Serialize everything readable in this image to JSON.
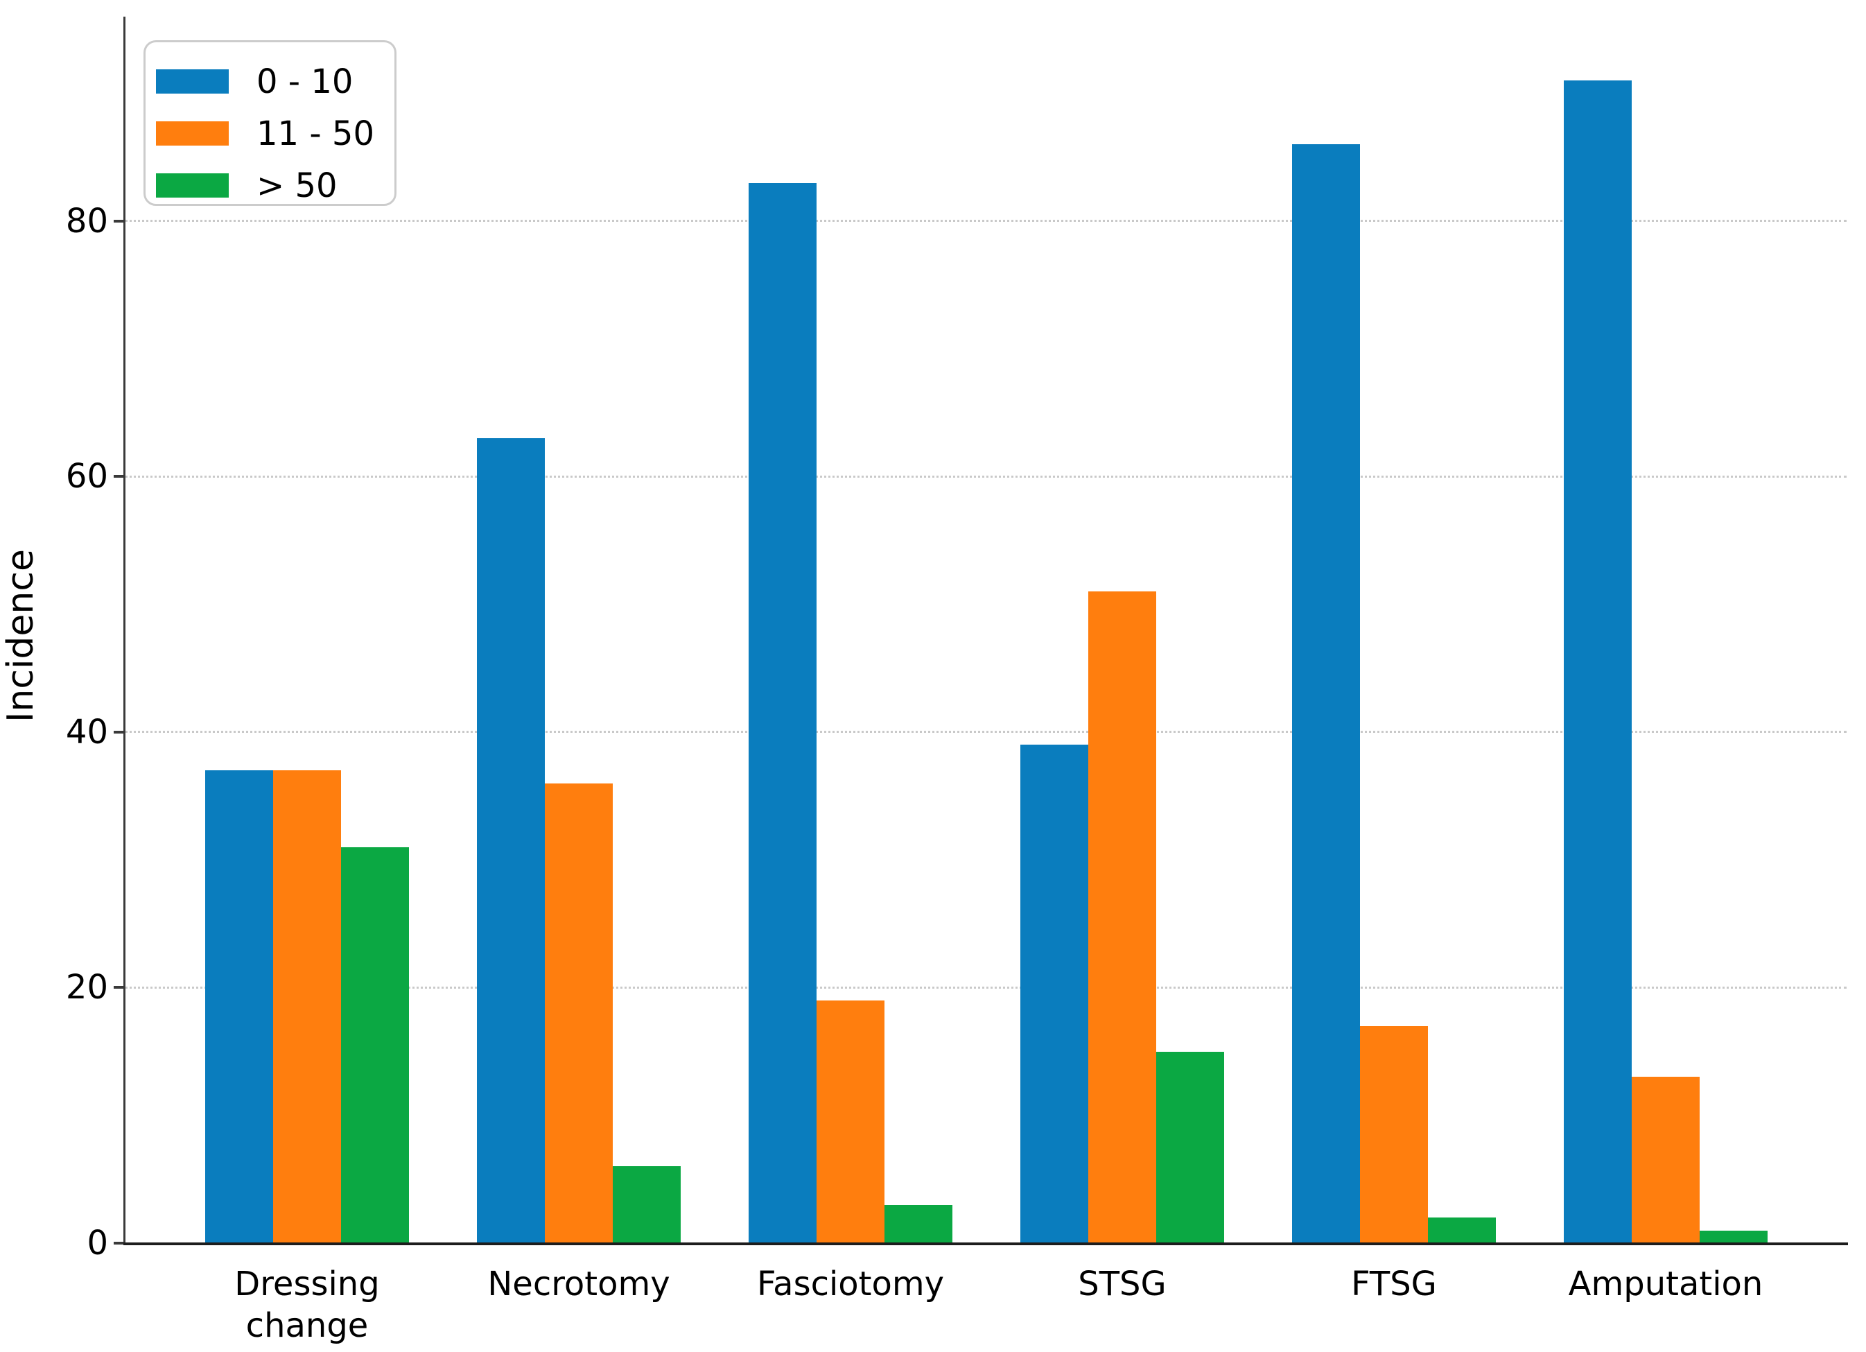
{
  "styles": {
    "background": "#ffffff",
    "grid_color": "#c9c9c9",
    "axis_color": "#3a3a3a",
    "text_color": "#000000",
    "legend_border": "#cccccc",
    "series_colors": [
      "#0a7dbe",
      "#ff7e0e",
      "#0ba843"
    ]
  },
  "chart_data": {
    "type": "bar",
    "title": "",
    "xlabel": "",
    "ylabel": "Incidence",
    "categories": [
      "Dressing change",
      "Necrotomy",
      "Fasciotomy",
      "STSG",
      "FTSG",
      "Amputation"
    ],
    "category_wrap": [
      true,
      false,
      false,
      false,
      false,
      false
    ],
    "series": [
      {
        "name": "0 - 10",
        "color": "#0a7dbe",
        "values": [
          37,
          63,
          83,
          39,
          86,
          91
        ]
      },
      {
        "name": "11 - 50",
        "color": "#ff7e0e",
        "values": [
          37,
          36,
          19,
          51,
          17,
          13
        ]
      },
      {
        "name": "> 50",
        "color": "#0ba843",
        "values": [
          31,
          6,
          3,
          15,
          2,
          1
        ]
      }
    ],
    "yticks": [
      0,
      20,
      40,
      60,
      80
    ],
    "ylim": [
      0,
      95.9
    ],
    "grid": "horizontal dotted gridlines at y ticks 20/40/60/80",
    "legend": {
      "position": "upper-left",
      "labels": [
        "0 - 10",
        "11 - 50",
        "> 50"
      ]
    }
  }
}
